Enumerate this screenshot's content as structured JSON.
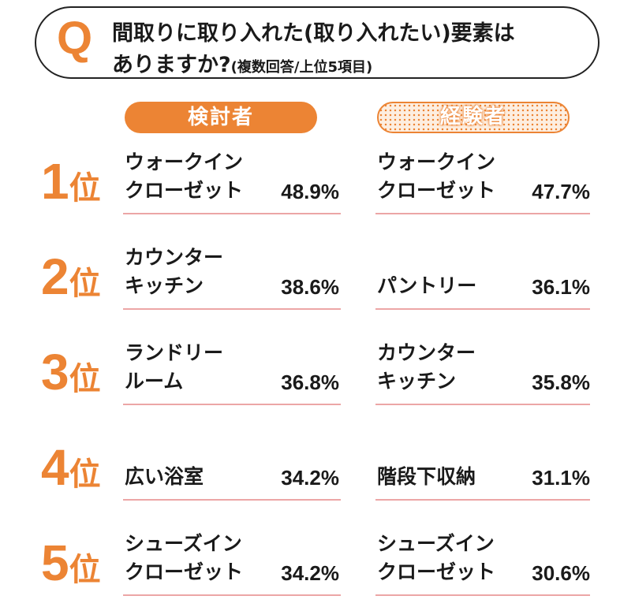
{
  "question": {
    "letter": "Q",
    "line1": "間取りに取り入れた(取り入れたい)要素は",
    "line2": "ありますか?",
    "note": "(複数回答/上位5項目)"
  },
  "chart_data": {
    "type": "table",
    "groups": [
      "検討者",
      "経験者"
    ],
    "rows": [
      {
        "rank": "1",
        "suffix": "位",
        "a": {
          "item": "ウォークイン\nクローゼット",
          "pct": "48.9%",
          "value": 48.9
        },
        "b": {
          "item": "ウォークイン\nクローゼット",
          "pct": "47.7%",
          "value": 47.7
        }
      },
      {
        "rank": "2",
        "suffix": "位",
        "a": {
          "item": "カウンター\nキッチン",
          "pct": "38.6%",
          "value": 38.6
        },
        "b": {
          "item": "パントリー",
          "pct": "36.1%",
          "value": 36.1
        }
      },
      {
        "rank": "3",
        "suffix": "位",
        "a": {
          "item": "ランドリー\nルーム",
          "pct": "36.8%",
          "value": 36.8
        },
        "b": {
          "item": "カウンター\nキッチン",
          "pct": "35.8%",
          "value": 35.8
        }
      },
      {
        "rank": "4",
        "suffix": "位",
        "a": {
          "item": "広い浴室",
          "pct": "34.2%",
          "value": 34.2
        },
        "b": {
          "item": "階段下収納",
          "pct": "31.1%",
          "value": 31.1
        }
      },
      {
        "rank": "5",
        "suffix": "位",
        "a": {
          "item": "シューズイン\nクローゼット",
          "pct": "34.2%",
          "value": 34.2
        },
        "b": {
          "item": "シューズイン\nクローゼット",
          "pct": "30.6%",
          "value": 30.6
        }
      }
    ]
  },
  "colors": {
    "accent": "#ec8434",
    "divider": "#eca6a6",
    "text": "#1a1a1a"
  }
}
